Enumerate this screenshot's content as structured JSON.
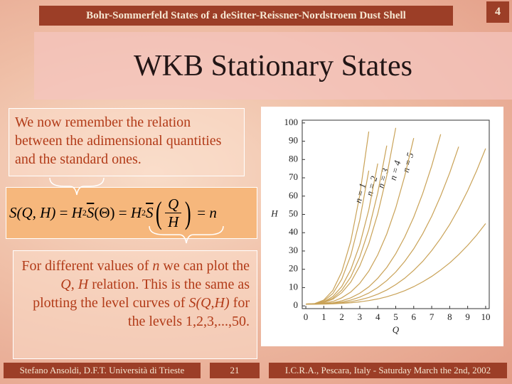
{
  "header": {
    "title": "Bohr-Sommerfeld States of a deSitter-Reissner-Nordstroem Dust Shell",
    "page": "4"
  },
  "slide_title": "WKB Stationary States",
  "intro": "We now remember the relation between the adimensional quantities and the standard ones.",
  "equation": {
    "lhs": "S(Q, H)",
    "eq1": "=",
    "h1": "H",
    "p1": "2",
    "s1": "S",
    "arg": "(Θ)",
    "eq2": "=",
    "h2": "H",
    "p2": "2",
    "s2": "S",
    "num": "Q",
    "den": "H",
    "eq3": "=",
    "rhs": "n"
  },
  "note": {
    "runs": [
      {
        "text": "For different values of "
      },
      {
        "text": "n",
        "italic": true
      },
      {
        "text": " we can plot the "
      },
      {
        "text": "Q",
        "italic": true
      },
      {
        "text": ", "
      },
      {
        "text": "H",
        "italic": true
      },
      {
        "text": " relation. This is the same as plotting the level curves of "
      },
      {
        "text": "S(Q,H)",
        "italic": true
      },
      {
        "text": " for the levels 1,2,3,...,50."
      }
    ]
  },
  "chart_data": {
    "type": "line",
    "xlabel": "Q",
    "ylabel": "H",
    "xlim": [
      -0.2,
      10.2
    ],
    "ylim": [
      -1.5,
      101.5
    ],
    "xticks": [
      0,
      1,
      2,
      3,
      4,
      5,
      6,
      7,
      8,
      9,
      10
    ],
    "yticks": [
      0,
      10,
      20,
      30,
      40,
      50,
      60,
      70,
      80,
      90,
      100
    ],
    "color": "#c9a257",
    "x": [
      0,
      0.5,
      1,
      1.5,
      2,
      2.5,
      3,
      3.5,
      4,
      4.5,
      5,
      5.5,
      6,
      6.5,
      7,
      7.5,
      8,
      8.5,
      9,
      9.5,
      10
    ],
    "series": [
      {
        "name": "n = 1",
        "values": [
          1,
          1.3,
          3.2,
          8.4,
          18.6,
          35.4,
          60.4,
          95.3,
          null,
          null,
          null,
          null,
          null,
          null,
          null,
          null,
          null,
          null,
          null,
          null,
          null
        ]
      },
      {
        "name": "n = 2",
        "values": [
          1,
          1.2,
          2.7,
          6.7,
          14.6,
          27.6,
          46.9,
          73.9,
          null,
          null,
          null,
          null,
          null,
          null,
          null,
          null,
          null,
          null,
          null,
          null,
          null
        ]
      },
      {
        "name": "n = 3",
        "values": [
          1,
          1.2,
          2.2,
          5.1,
          10.6,
          19.8,
          33.4,
          52.5,
          77.8,
          null,
          null,
          null,
          null,
          null,
          null,
          null,
          null,
          null,
          null,
          null,
          null
        ]
      },
      {
        "name": "n = 4",
        "values": [
          1,
          1.1,
          2,
          4.2,
          8.6,
          15.8,
          26.7,
          41.7,
          61.8,
          87.6,
          null,
          null,
          null,
          null,
          null,
          null,
          null,
          null,
          null,
          null,
          null
        ]
      },
      {
        "name": "n = 5",
        "values": [
          1,
          1.1,
          1.8,
          3.6,
          7.2,
          13,
          21.8,
          34,
          50.3,
          71.2,
          97.3,
          null,
          null,
          null,
          null,
          null,
          null,
          null,
          null,
          null,
          null
        ]
      },
      {
        "values": [
          1,
          1.1,
          1.4,
          2.4,
          4.4,
          7.6,
          12.3,
          19,
          27.9,
          39.3,
          53.5,
          70.9,
          91.7,
          null,
          null,
          null,
          null,
          null,
          null,
          null,
          null
        ]
      },
      {
        "values": [
          1,
          1,
          1.2,
          1.7,
          2.8,
          4.4,
          6.9,
          10.4,
          15.1,
          21,
          28.5,
          37.6,
          48.5,
          61.4,
          76.5,
          93.8,
          null,
          null,
          null,
          null,
          null
        ]
      },
      {
        "values": [
          1,
          1,
          1.1,
          1.5,
          2.1,
          3.2,
          4.8,
          7,
          10,
          13.8,
          18.5,
          24.3,
          31.2,
          39.4,
          49,
          60.1,
          72.7,
          87,
          null,
          null,
          null
        ]
      },
      {
        "values": [
          1,
          1,
          1.1,
          1.3,
          1.7,
          2.3,
          3.3,
          4.6,
          6.4,
          8.7,
          11.6,
          15.1,
          19.4,
          24.3,
          30.2,
          36.9,
          44.5,
          53.2,
          63,
          73.9,
          86
        ]
      },
      {
        "values": [
          1,
          1,
          1,
          1.1,
          1.4,
          1.7,
          2.2,
          2.9,
          3.8,
          5,
          6.5,
          8.3,
          10.5,
          13.1,
          16.1,
          19.6,
          23.5,
          28,
          33.1,
          38.7,
          45
        ]
      }
    ]
  },
  "footer": {
    "author": "Stefano Ansoldi, D.F.T. Università di Trieste",
    "slide": "21",
    "event": "I.C.R.A., Pescara, Italy - Saturday March the 2nd, 2002"
  }
}
